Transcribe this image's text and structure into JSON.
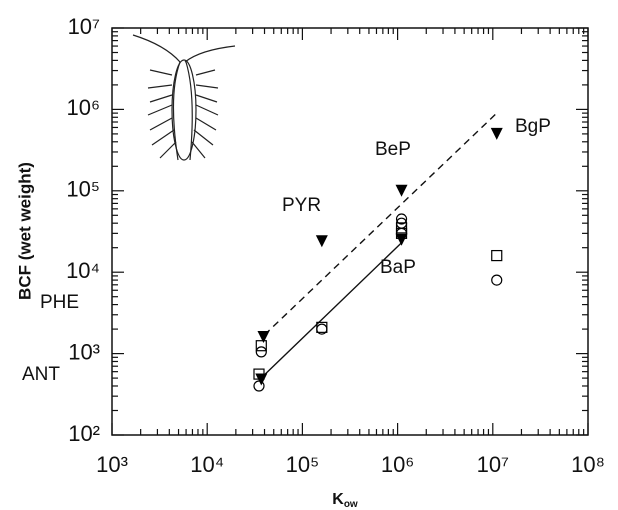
{
  "chart_data": {
    "type": "scatter",
    "log_x": true,
    "log_y": true,
    "y_label": "BCF (wet weight)",
    "x_label": "K",
    "x_label_sub": "ow",
    "xlim": [
      1000,
      100000000
    ],
    "xticks": [
      {
        "value": 1000,
        "label": "10³"
      },
      {
        "value": 10000,
        "label": "10⁴"
      },
      {
        "value": 100000,
        "label": "10⁵"
      },
      {
        "value": 1000000,
        "label": "10⁶"
      },
      {
        "value": 10000000,
        "label": "10⁷"
      },
      {
        "value": 100000000,
        "label": "10⁸"
      }
    ],
    "ylim": [
      100,
      10000000
    ],
    "yticks": [
      {
        "value": 100,
        "label": "10²"
      },
      {
        "value": 1000,
        "label": "10³"
      },
      {
        "value": 10000,
        "label": "10⁴"
      },
      {
        "value": 100000,
        "label": "10⁵"
      },
      {
        "value": 1000000,
        "label": "10⁶"
      },
      {
        "value": 10000000,
        "label": "10⁷"
      }
    ],
    "series": [
      {
        "marker": "triangle",
        "color": "#000000",
        "x": [
          37000,
          39000,
          160000,
          1100000,
          1100000,
          11000000
        ],
        "values": [
          480,
          1600,
          24000,
          25000,
          100000,
          500000
        ]
      },
      {
        "marker": "square",
        "color": "#000000",
        "x": [
          35000,
          37000,
          160000,
          1100000,
          1100000,
          11000000
        ],
        "values": [
          560,
          1250,
          2100,
          35000,
          30000,
          16000
        ]
      },
      {
        "marker": "circle",
        "color": "#000000",
        "x": [
          35000,
          37000,
          160000,
          1100000,
          1100000,
          1100000,
          11000000
        ],
        "values": [
          400,
          1050,
          2000,
          40000,
          45000,
          30000,
          8000
        ]
      }
    ],
    "lines": [
      {
        "style": "dashed",
        "x": [
          40000,
          11000000
        ],
        "values": [
          1700,
          900000
        ]
      },
      {
        "style": "solid",
        "x": [
          40000,
          1100000
        ],
        "values": [
          550,
          23000
        ]
      }
    ],
    "annotations": [
      "ANT",
      "PHE",
      "PYR",
      "BaP",
      "BeP",
      "BgP"
    ]
  }
}
